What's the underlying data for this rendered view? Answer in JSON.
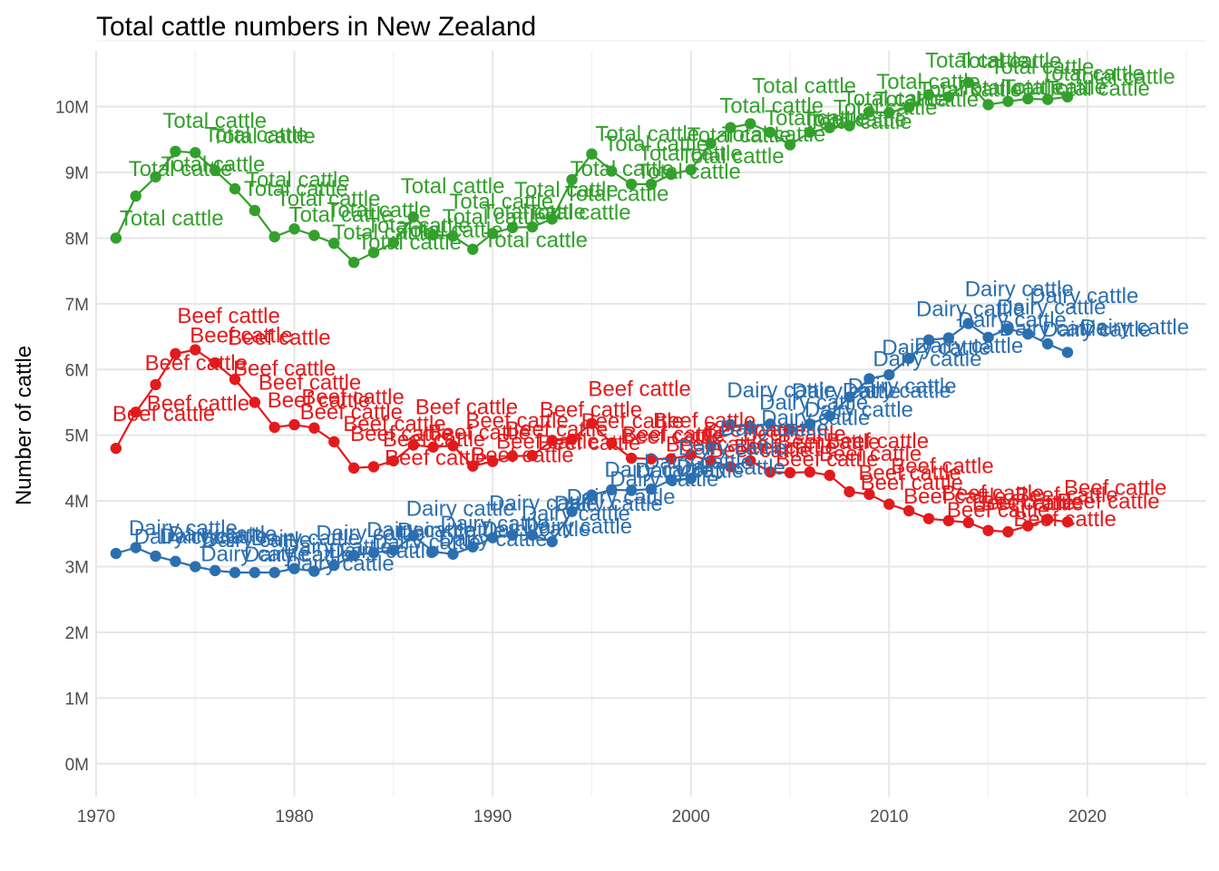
{
  "chart_data": {
    "type": "line",
    "title": "Total cattle numbers in New Zealand",
    "xlabel": "",
    "ylabel": "Number of cattle",
    "xlim": [
      1970,
      2026
    ],
    "ylim": [
      -0.5,
      10.85
    ],
    "x_ticks": [
      1970,
      1980,
      1990,
      2000,
      2010,
      2020
    ],
    "y_ticks": [
      0,
      1,
      2,
      3,
      4,
      5,
      6,
      7,
      8,
      9,
      10
    ],
    "y_tick_labels": [
      "0M",
      "1M",
      "2M",
      "3M",
      "4M",
      "5M",
      "6M",
      "7M",
      "8M",
      "9M",
      "10M"
    ],
    "y_unit": "millions",
    "grid": true,
    "legend": "none",
    "x": [
      1971,
      1972,
      1973,
      1974,
      1975,
      1976,
      1977,
      1978,
      1979,
      1980,
      1981,
      1982,
      1983,
      1984,
      1985,
      1986,
      1987,
      1988,
      1989,
      1990,
      1991,
      1992,
      1993,
      1994,
      1995,
      1996,
      1997,
      1998,
      1999,
      2000,
      2001,
      2002,
      2003,
      2004,
      2005,
      2006,
      2007,
      2008,
      2009,
      2010,
      2011,
      2012,
      2013,
      2014,
      2015,
      2016,
      2017,
      2018,
      2019
    ],
    "series": [
      {
        "name": "Total cattle",
        "color": "#33a02c",
        "values": [
          8.0,
          8.64,
          8.93,
          9.32,
          9.3,
          9.03,
          8.75,
          8.42,
          8.02,
          8.14,
          8.04,
          7.92,
          7.63,
          7.78,
          7.93,
          8.32,
          8.05,
          8.03,
          7.83,
          8.07,
          8.16,
          8.17,
          8.29,
          8.89,
          9.28,
          9.02,
          8.82,
          8.82,
          8.97,
          9.04,
          9.44,
          9.68,
          9.74,
          9.61,
          9.42,
          9.61,
          9.68,
          9.71,
          9.92,
          9.91,
          9.99,
          10.18,
          10.15,
          10.37,
          10.03,
          10.08,
          10.12,
          10.11,
          10.15
        ]
      },
      {
        "name": "Beef cattle",
        "color": "#e31a1c",
        "values": [
          4.8,
          5.35,
          5.77,
          6.24,
          6.3,
          6.1,
          5.85,
          5.5,
          5.12,
          5.16,
          5.11,
          4.9,
          4.5,
          4.52,
          4.61,
          4.85,
          4.82,
          4.84,
          4.53,
          4.6,
          4.68,
          4.69,
          4.92,
          4.94,
          5.18,
          4.88,
          4.65,
          4.64,
          4.64,
          4.7,
          4.61,
          4.52,
          4.61,
          4.44,
          4.43,
          4.44,
          4.39,
          4.14,
          4.1,
          3.95,
          3.85,
          3.73,
          3.7,
          3.67,
          3.55,
          3.53,
          3.62,
          3.72,
          3.68
        ]
      },
      {
        "name": "Dairy cattle",
        "color": "#2c6fb0",
        "values": [
          3.2,
          3.29,
          3.16,
          3.08,
          3.0,
          2.94,
          2.91,
          2.91,
          2.91,
          2.97,
          2.93,
          3.02,
          3.17,
          3.21,
          3.25,
          3.47,
          3.23,
          3.19,
          3.3,
          3.44,
          3.48,
          3.48,
          3.38,
          3.84,
          4.09,
          4.17,
          4.16,
          4.18,
          4.32,
          4.34,
          4.83,
          5.16,
          5.13,
          5.17,
          5.09,
          5.17,
          5.29,
          5.58,
          5.86,
          5.92,
          6.17,
          6.45,
          6.48,
          6.7,
          6.49,
          6.62,
          6.54,
          6.39,
          6.26
        ]
      }
    ],
    "point_label_jitter": [
      [
        4,
        -14
      ],
      [
        -8,
        -22
      ],
      [
        6,
        -6
      ],
      [
        -14,
        -26
      ],
      [
        10,
        -12
      ],
      [
        -4,
        -30
      ],
      [
        12,
        -2
      ],
      [
        -12,
        -16
      ],
      [
        2,
        -34
      ],
      [
        -6,
        -8
      ],
      [
        14,
        -20
      ],
      [
        -2,
        -4
      ]
    ]
  }
}
